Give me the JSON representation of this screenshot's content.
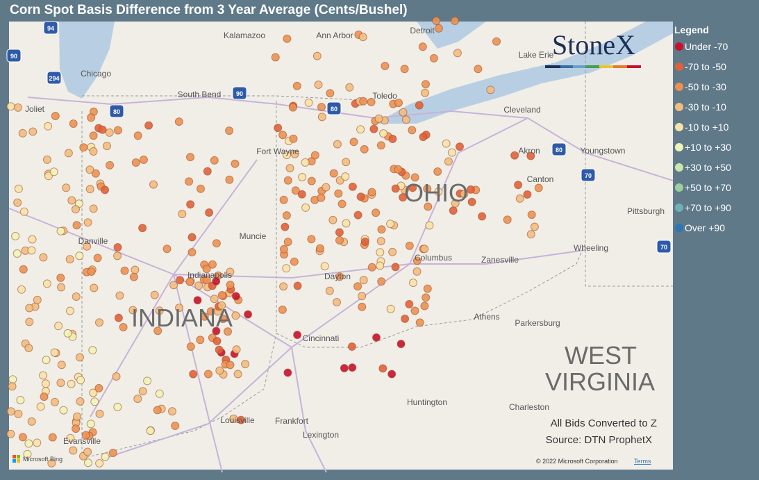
{
  "header": {
    "title": "Corn Spot Basis Difference from 3 Year Average (Cents/Bushel)"
  },
  "legend": {
    "title": "Legend",
    "items": [
      {
        "label": "Under -70",
        "color": "#c8102e"
      },
      {
        "label": "-70 to -50",
        "color": "#e1603a"
      },
      {
        "label": "-50 to -30",
        "color": "#ec9152"
      },
      {
        "label": "-30 to -10",
        "color": "#f2bd80"
      },
      {
        "label": "-10 to +10",
        "color": "#f7e3a8"
      },
      {
        "label": "+10 to +30",
        "color": "#eef4b8"
      },
      {
        "label": "+30 to +50",
        "color": "#cce6ae"
      },
      {
        "label": "+50 to +70",
        "color": "#9ccf9b"
      },
      {
        "label": "+70 to +90",
        "color": "#6fb1b1"
      },
      {
        "label": "Over +90",
        "color": "#2e75b6"
      }
    ]
  },
  "logo": "StoneX",
  "map": {
    "places": [
      "Kalamazoo",
      "Ann Arbor",
      "Detroit",
      "Chicago",
      "South Bend",
      "Toledo",
      "Joliet",
      "Cleveland",
      "Fort Wayne",
      "Akron",
      "Youngstown",
      "Canton",
      "OHIO",
      "Pittsburgh",
      "Danville",
      "Muncie",
      "Wheeling",
      "Columbus",
      "Zanesville",
      "Indianapolis",
      "Dayton",
      "INDIANA",
      "Athens",
      "Parkersburg",
      "Cincinnati",
      "WEST",
      "VIRGINIA",
      "Huntington",
      "Charleston",
      "Louisville",
      "Frankfort",
      "Evansville",
      "Lexington",
      "Lake Erie"
    ],
    "highways": [
      "94",
      "90",
      "294",
      "80",
      "90",
      "80",
      "80",
      "70",
      "70"
    ]
  },
  "notes": [
    "All Bids Converted to Z",
    "Source: DTN ProphetX"
  ],
  "attribution": {
    "bing": "Microsoft Bing",
    "copyright": "© 2022 Microsoft Corporation",
    "terms": "Terms"
  }
}
